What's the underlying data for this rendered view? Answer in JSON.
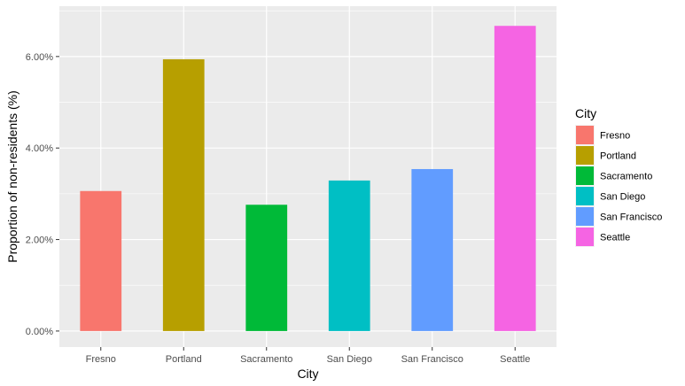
{
  "chart_data": {
    "type": "bar",
    "categories": [
      "Fresno",
      "Portland",
      "Sacramento",
      "San Diego",
      "San Francisco",
      "Seattle"
    ],
    "values": [
      3.06,
      5.94,
      2.76,
      3.29,
      3.54,
      6.67
    ],
    "colors": [
      "#F8766D",
      "#B79F00",
      "#00BA38",
      "#00BFC4",
      "#619CFF",
      "#F564E3"
    ],
    "xlabel": "City",
    "ylabel": "Proportion of non-residents (%)",
    "ylim": [
      -0.35,
      7.1
    ],
    "yticks": [
      0,
      2,
      4,
      6
    ],
    "ytick_labels": [
      "0.00%",
      "2.00%",
      "4.00%",
      "6.00%"
    ],
    "grid": true,
    "panel_background": "#EBEBEB",
    "gridline_color": "#FFFFFF",
    "legend": {
      "title": "City",
      "placement": "right",
      "entries": [
        "Fresno",
        "Portland",
        "Sacramento",
        "San Diego",
        "San Francisco",
        "Seattle"
      ]
    }
  }
}
